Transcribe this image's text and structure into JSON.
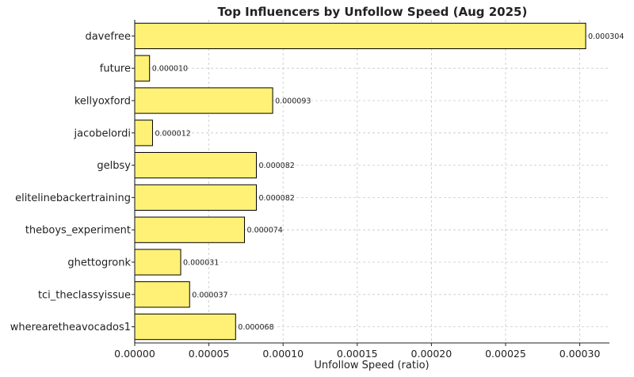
{
  "chart_data": {
    "type": "bar",
    "orientation": "horizontal",
    "title": "Top Influencers by Unfollow Speed (Aug 2025)",
    "xlabel": "Unfollow Speed (ratio)",
    "ylabel": "",
    "xlim": [
      0,
      0.00032
    ],
    "xticks": [
      0,
      5e-05,
      0.0001,
      0.00015,
      0.0002,
      0.00025,
      0.0003
    ],
    "xtick_labels": [
      "0.00000",
      "0.00005",
      "0.00010",
      "0.00015",
      "0.00020",
      "0.00025",
      "0.00030"
    ],
    "grid": true,
    "bar_color": "#fff176",
    "bar_edge_color": "#000000",
    "categories": [
      "davefree",
      "future",
      "kellyoxford",
      "jacobelordi",
      "gelbsy",
      "elitelinebackertraining",
      "theboys_experiment",
      "ghettogronk",
      "tci_theclassyissue",
      "wherearetheavocados1"
    ],
    "values": [
      0.000304,
      1e-05,
      9.3e-05,
      1.2e-05,
      8.2e-05,
      8.2e-05,
      7.4e-05,
      3.1e-05,
      3.7e-05,
      6.8e-05
    ],
    "value_labels": [
      "0.000304",
      "0.000010",
      "0.000093",
      "0.000012",
      "0.000082",
      "0.000082",
      "0.000074",
      "0.000031",
      "0.000037",
      "0.000068"
    ]
  }
}
